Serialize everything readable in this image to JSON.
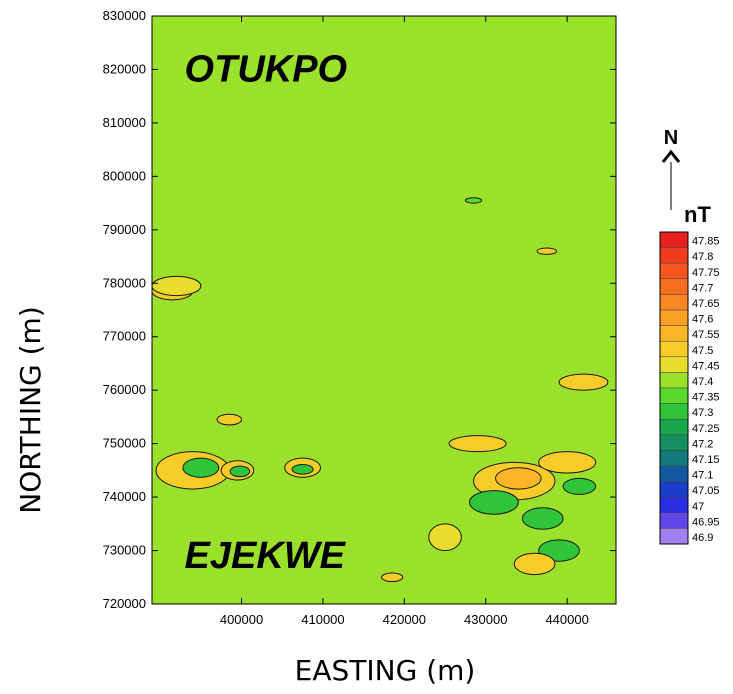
{
  "chart_data": {
    "type": "contour",
    "xlabel": "EASTING (m)",
    "ylabel": "NORTHING (m)",
    "xlim": [
      389000,
      446000
    ],
    "ylim": [
      720000,
      830000
    ],
    "x_ticks": [
      400000,
      410000,
      420000,
      430000,
      440000
    ],
    "y_ticks": [
      720000,
      730000,
      740000,
      750000,
      760000,
      770000,
      780000,
      790000,
      800000,
      810000,
      820000,
      830000
    ],
    "background_value": 47.4,
    "background_color": "#9be02a",
    "place_labels": [
      {
        "name": "OTUKPO",
        "x": 393000,
        "y": 820000
      },
      {
        "name": "EJEKWE",
        "x": 393000,
        "y": 729000
      }
    ],
    "north_arrow": "N",
    "legend": {
      "title": "nT",
      "levels": [
        47.85,
        47.8,
        47.75,
        47.7,
        47.65,
        47.6,
        47.55,
        47.5,
        47.45,
        47.4,
        47.35,
        47.3,
        47.25,
        47.2,
        47.15,
        47.1,
        47.05,
        47,
        46.95,
        46.9
      ],
      "colors": [
        "#e8201c",
        "#f03c1e",
        "#f5561f",
        "#f86e20",
        "#fa8722",
        "#fb9e24",
        "#fcb526",
        "#f8cc28",
        "#e8dc2c",
        "#9be02a",
        "#5ad82c",
        "#2fc43a",
        "#1aa64a",
        "#149060",
        "#127a7a",
        "#1458a0",
        "#1a3ec8",
        "#2a2ee0",
        "#6048e8",
        "#a080f0"
      ]
    },
    "contour_zones": [
      {
        "level": 47.5,
        "x": 394000,
        "y": 745000,
        "rx": 4500,
        "ry": 3500
      },
      {
        "level": 47.3,
        "x": 395000,
        "y": 745500,
        "rx": 2200,
        "ry": 1800
      },
      {
        "level": 47.5,
        "x": 399500,
        "y": 745000,
        "rx": 2000,
        "ry": 1800
      },
      {
        "level": 47.3,
        "x": 399800,
        "y": 744800,
        "rx": 1200,
        "ry": 1000
      },
      {
        "level": 47.5,
        "x": 407500,
        "y": 745500,
        "rx": 2200,
        "ry": 1800
      },
      {
        "level": 47.3,
        "x": 407500,
        "y": 745200,
        "rx": 1300,
        "ry": 900
      },
      {
        "level": 47.5,
        "x": 398500,
        "y": 754500,
        "rx": 1500,
        "ry": 1000
      },
      {
        "level": 47.5,
        "x": 391500,
        "y": 778500,
        "rx": 2500,
        "ry": 1600
      },
      {
        "level": 47.45,
        "x": 392000,
        "y": 779500,
        "rx": 3000,
        "ry": 1800
      },
      {
        "level": 47.5,
        "x": 429000,
        "y": 750000,
        "rx": 3500,
        "ry": 1500
      },
      {
        "level": 47.5,
        "x": 433500,
        "y": 743000,
        "rx": 5000,
        "ry": 3500
      },
      {
        "level": 47.55,
        "x": 434000,
        "y": 743500,
        "rx": 2800,
        "ry": 2000
      },
      {
        "level": 47.3,
        "x": 431000,
        "y": 739000,
        "rx": 3000,
        "ry": 2200
      },
      {
        "level": 47.3,
        "x": 437000,
        "y": 736000,
        "rx": 2500,
        "ry": 2000
      },
      {
        "level": 47.3,
        "x": 439000,
        "y": 730000,
        "rx": 2500,
        "ry": 2000
      },
      {
        "level": 47.5,
        "x": 442000,
        "y": 761500,
        "rx": 3000,
        "ry": 1500
      },
      {
        "level": 47.5,
        "x": 440000,
        "y": 746500,
        "rx": 3500,
        "ry": 2000
      },
      {
        "level": 47.3,
        "x": 441500,
        "y": 742000,
        "rx": 2000,
        "ry": 1500
      },
      {
        "level": 47.5,
        "x": 436000,
        "y": 727500,
        "rx": 2500,
        "ry": 2000
      },
      {
        "level": 47.45,
        "x": 425000,
        "y": 732500,
        "rx": 2000,
        "ry": 2500
      },
      {
        "level": 47.5,
        "x": 418500,
        "y": 725000,
        "rx": 1300,
        "ry": 800
      },
      {
        "level": 47.5,
        "x": 437500,
        "y": 786000,
        "rx": 1200,
        "ry": 600
      },
      {
        "level": 47.35,
        "x": 428500,
        "y": 795500,
        "rx": 1000,
        "ry": 500
      }
    ]
  }
}
